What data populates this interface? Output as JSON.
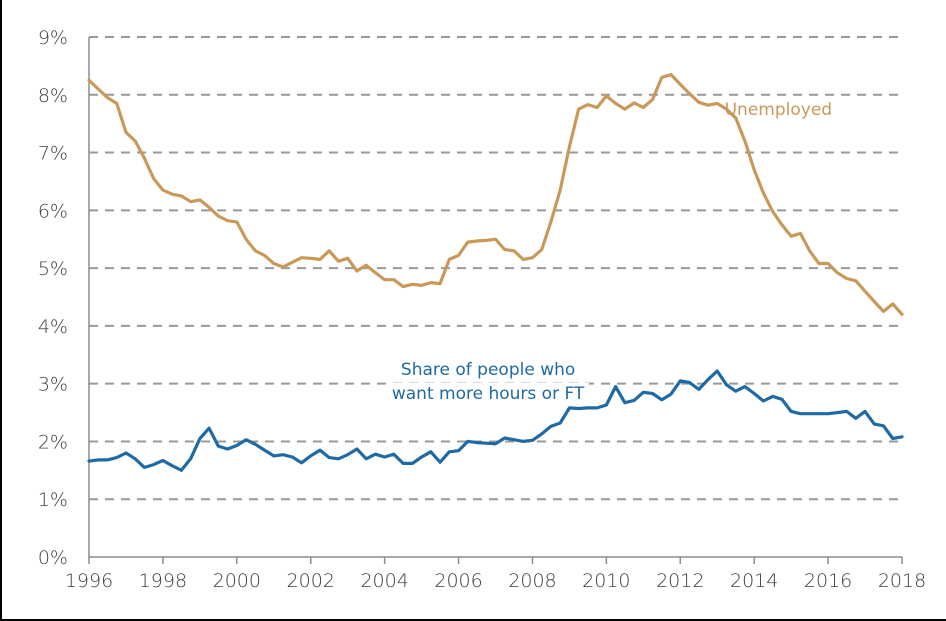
{
  "chart_data": {
    "type": "line",
    "title": "",
    "xlabel": "",
    "ylabel": "",
    "xlim": [
      1996,
      2018
    ],
    "ylim": [
      0,
      9
    ],
    "grid": true,
    "x_ticks": [
      1996,
      1998,
      2000,
      2002,
      2004,
      2006,
      2008,
      2010,
      2012,
      2014,
      2016,
      2018
    ],
    "x_tick_labels": [
      "1996",
      "1998",
      "2000",
      "2002",
      "2004",
      "2006",
      "2008",
      "2010",
      "2012",
      "2014",
      "2016",
      "2018"
    ],
    "y_ticks": [
      0,
      1,
      2,
      3,
      4,
      5,
      6,
      7,
      8,
      9
    ],
    "y_tick_labels": [
      "0%",
      "1%",
      "2%",
      "3%",
      "4%",
      "5%",
      "6%",
      "7%",
      "8%",
      "9%"
    ],
    "x_start": 1996,
    "x_step": 0.25,
    "series": [
      {
        "name": "Unemployed",
        "label_lines": [
          "Unemployed"
        ],
        "color": "#C9995A",
        "label_anchor": [
          2013.2,
          7.65
        ],
        "values": [
          8.25,
          8.1,
          7.95,
          7.85,
          7.35,
          7.2,
          6.9,
          6.55,
          6.35,
          6.28,
          6.25,
          6.15,
          6.18,
          6.05,
          5.9,
          5.82,
          5.8,
          5.5,
          5.3,
          5.22,
          5.08,
          5.02,
          5.1,
          5.18,
          5.17,
          5.15,
          5.3,
          5.12,
          5.17,
          4.95,
          5.05,
          4.92,
          4.8,
          4.8,
          4.68,
          4.72,
          4.7,
          4.75,
          4.73,
          5.15,
          5.22,
          5.45,
          5.47,
          5.48,
          5.5,
          5.32,
          5.3,
          5.15,
          5.18,
          5.32,
          5.8,
          6.35,
          7.1,
          7.75,
          7.83,
          7.78,
          7.98,
          7.85,
          7.75,
          7.86,
          7.78,
          7.92,
          8.3,
          8.35,
          8.18,
          8.02,
          7.87,
          7.82,
          7.85,
          7.75,
          7.6,
          7.2,
          6.7,
          6.3,
          5.98,
          5.75,
          5.55,
          5.6,
          5.3,
          5.08,
          5.08,
          4.92,
          4.82,
          4.78,
          4.6,
          4.42,
          4.25,
          4.38,
          4.2
        ]
      },
      {
        "name": "Share of people who want more hours or FT",
        "label_lines": [
          "Share of people who",
          "want more hours or FT"
        ],
        "color": "#1F6AA5",
        "label_anchor": [
          2006.8,
          3.15
        ],
        "values": [
          1.66,
          1.68,
          1.68,
          1.72,
          1.8,
          1.7,
          1.55,
          1.6,
          1.67,
          1.58,
          1.5,
          1.7,
          2.05,
          2.23,
          1.92,
          1.87,
          1.93,
          2.03,
          1.95,
          1.85,
          1.75,
          1.77,
          1.73,
          1.63,
          1.75,
          1.85,
          1.72,
          1.7,
          1.77,
          1.87,
          1.7,
          1.78,
          1.73,
          1.78,
          1.62,
          1.62,
          1.73,
          1.82,
          1.64,
          1.82,
          1.84,
          2.0,
          1.98,
          1.97,
          1.96,
          2.06,
          2.03,
          2.0,
          2.02,
          2.13,
          2.26,
          2.32,
          2.58,
          2.57,
          2.58,
          2.58,
          2.63,
          2.95,
          2.67,
          2.71,
          2.85,
          2.83,
          2.72,
          2.82,
          3.05,
          3.02,
          2.9,
          3.07,
          3.22,
          2.98,
          2.87,
          2.95,
          2.83,
          2.7,
          2.78,
          2.73,
          2.52,
          2.48,
          2.48,
          2.48,
          2.48,
          2.5,
          2.52,
          2.4,
          2.52,
          2.3,
          2.27,
          2.05,
          2.08
        ]
      }
    ]
  },
  "colors": {
    "gridline": "#999999",
    "axis": "#8c8c8c",
    "tick_text": "#404040"
  }
}
